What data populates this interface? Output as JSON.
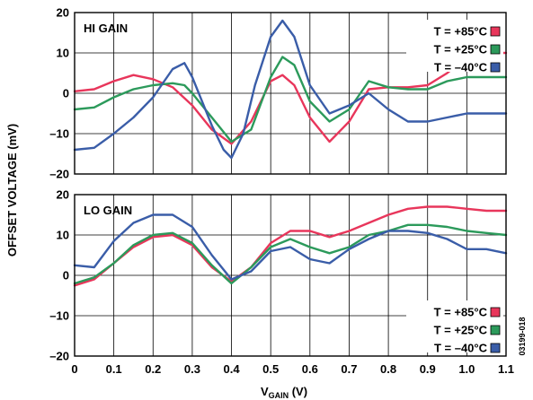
{
  "chart_data": {
    "type": "line",
    "ylabel": "OFFSET VOLTAGE (mV)",
    "xlabel": {
      "main": "V",
      "sub": "GAIN",
      "unit": " (V)"
    },
    "figure_id": "03199-018",
    "x_ticks": [
      "0",
      "0.1",
      "0.2",
      "0.3",
      "0.4",
      "0.5",
      "0.6",
      "0.7",
      "0.8",
      "0.9",
      "1.0",
      "1.1"
    ],
    "xlim": [
      0,
      1.1
    ],
    "grid": true,
    "panels": [
      {
        "title": "HI GAIN",
        "ylim": [
          -20,
          20
        ],
        "y_ticks": [
          "20",
          "10",
          "0",
          "–10",
          "–20"
        ],
        "legend_position": "top-right",
        "legend": [
          {
            "label": "T = +85°C",
            "color": "#e8365b"
          },
          {
            "label": "T = +25°C",
            "color": "#2c9a5b"
          },
          {
            "label": "T = –40°C",
            "color": "#3a5da8"
          }
        ],
        "series": [
          {
            "label": "T = +85°C",
            "color": "#e8365b",
            "x": [
              0,
              0.05,
              0.1,
              0.15,
              0.2,
              0.25,
              0.3,
              0.35,
              0.4,
              0.45,
              0.5,
              0.53,
              0.56,
              0.6,
              0.65,
              0.7,
              0.75,
              0.8,
              0.85,
              0.9,
              0.95,
              1.0,
              1.05,
              1.1
            ],
            "y": [
              0.5,
              1,
              3,
              4.5,
              3.5,
              1.5,
              -3,
              -9,
              -12.5,
              -7,
              3,
              4.5,
              2,
              -6,
              -12,
              -7,
              1,
              1.5,
              1.5,
              2,
              5,
              9,
              10,
              10
            ]
          },
          {
            "label": "T = +25°C",
            "color": "#2c9a5b",
            "x": [
              0,
              0.05,
              0.1,
              0.15,
              0.2,
              0.25,
              0.28,
              0.3,
              0.35,
              0.4,
              0.45,
              0.5,
              0.53,
              0.56,
              0.6,
              0.65,
              0.7,
              0.75,
              0.8,
              0.85,
              0.9,
              0.95,
              1.0,
              1.05,
              1.1
            ],
            "y": [
              -4,
              -3.5,
              -1,
              1,
              2,
              2.5,
              2,
              0,
              -6,
              -12,
              -9,
              4,
              9,
              7,
              -2,
              -7,
              -4,
              3,
              1.5,
              1,
              1,
              3,
              4,
              4,
              4
            ]
          },
          {
            "label": "T = –40°C",
            "color": "#3a5da8",
            "x": [
              0,
              0.05,
              0.1,
              0.15,
              0.2,
              0.25,
              0.28,
              0.3,
              0.35,
              0.38,
              0.4,
              0.43,
              0.46,
              0.5,
              0.53,
              0.56,
              0.6,
              0.65,
              0.7,
              0.75,
              0.8,
              0.85,
              0.9,
              0.95,
              1.0,
              1.05,
              1.1
            ],
            "y": [
              -14,
              -13.5,
              -10,
              -6,
              -1,
              6,
              7.5,
              4,
              -8,
              -14,
              -16,
              -10,
              2,
              14,
              18,
              14,
              2,
              -5,
              -3,
              0,
              -4,
              -7,
              -7,
              -6,
              -5,
              -5,
              -5
            ]
          }
        ]
      },
      {
        "title": "LO GAIN",
        "ylim": [
          -20,
          20
        ],
        "y_ticks": [
          "20",
          "10",
          "0",
          "–10",
          "–20"
        ],
        "legend_position": "bottom-right",
        "legend": [
          {
            "label": "T = +85°C",
            "color": "#e8365b"
          },
          {
            "label": "T = +25°C",
            "color": "#2c9a5b"
          },
          {
            "label": "T = –40°C",
            "color": "#3a5da8"
          }
        ],
        "series": [
          {
            "label": "T = +85°C",
            "color": "#e8365b",
            "x": [
              0,
              0.05,
              0.1,
              0.15,
              0.2,
              0.25,
              0.3,
              0.35,
              0.4,
              0.45,
              0.5,
              0.55,
              0.6,
              0.65,
              0.7,
              0.75,
              0.8,
              0.85,
              0.9,
              0.95,
              1.0,
              1.05,
              1.1
            ],
            "y": [
              -2.5,
              -1,
              3,
              7,
              9.5,
              10,
              7.5,
              2,
              -1.5,
              2,
              8,
              11,
              11,
              9.5,
              11,
              13,
              15,
              16.5,
              17,
              17,
              16.5,
              16,
              16
            ]
          },
          {
            "label": "T = +25°C",
            "color": "#2c9a5b",
            "x": [
              0,
              0.05,
              0.1,
              0.15,
              0.2,
              0.25,
              0.3,
              0.35,
              0.4,
              0.45,
              0.5,
              0.55,
              0.6,
              0.65,
              0.7,
              0.75,
              0.8,
              0.85,
              0.9,
              0.95,
              1.0,
              1.05,
              1.1
            ],
            "y": [
              -2,
              -0.5,
              3,
              7.5,
              10,
              10.5,
              8,
              2.5,
              -2,
              2,
              7,
              9,
              7,
              5.5,
              7,
              10,
              11,
              12.5,
              12.5,
              12,
              11,
              10.5,
              10
            ]
          },
          {
            "label": "T = –40°C",
            "color": "#3a5da8",
            "x": [
              0,
              0.05,
              0.1,
              0.15,
              0.2,
              0.25,
              0.3,
              0.35,
              0.4,
              0.45,
              0.5,
              0.55,
              0.6,
              0.65,
              0.7,
              0.75,
              0.8,
              0.85,
              0.9,
              0.95,
              1.0,
              1.05,
              1.1
            ],
            "y": [
              2.5,
              2,
              8.5,
              13,
              15,
              15,
              12,
              5,
              -1,
              1,
              6,
              7,
              4,
              3,
              6.5,
              9,
              11,
              11,
              10.5,
              9,
              6.5,
              6.5,
              5.5
            ]
          }
        ]
      }
    ]
  }
}
